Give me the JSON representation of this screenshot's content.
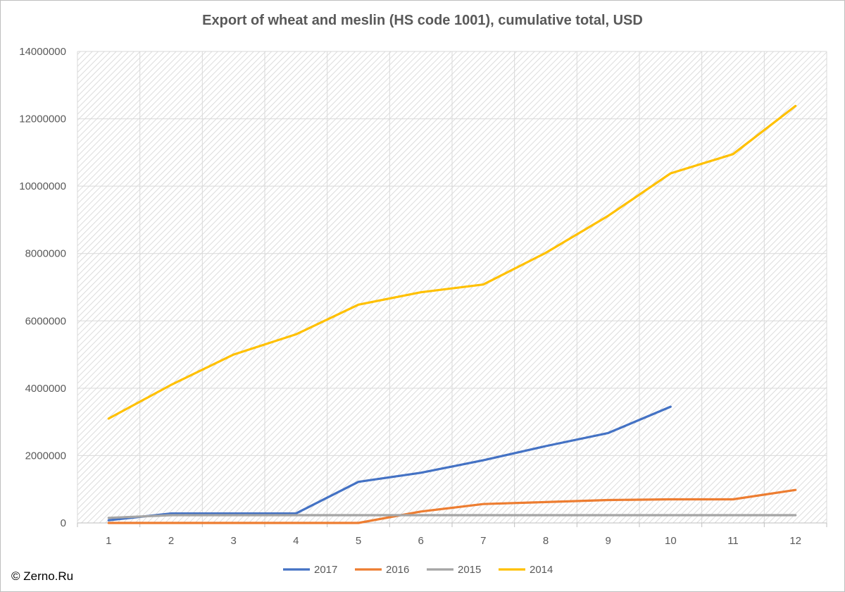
{
  "chart_data": {
    "type": "line",
    "title": "Export of wheat and meslin (HS code 1001), cumulative total, USD",
    "xlabel": "",
    "ylabel": "",
    "categories": [
      "1",
      "2",
      "3",
      "4",
      "5",
      "6",
      "7",
      "8",
      "9",
      "10",
      "11",
      "12"
    ],
    "ylim": [
      0,
      14000000
    ],
    "yticks": [
      0,
      2000000,
      4000000,
      6000000,
      8000000,
      10000000,
      12000000,
      14000000
    ],
    "grid": true,
    "legend_position": "bottom",
    "series": [
      {
        "name": "2017",
        "color": "#4472c4",
        "values": [
          80000,
          280000,
          280000,
          280000,
          1220000,
          1490000,
          1860000,
          2280000,
          2670000,
          3450000,
          null,
          null
        ]
      },
      {
        "name": "2016",
        "color": "#ed7d31",
        "values": [
          0,
          0,
          0,
          0,
          0,
          340000,
          560000,
          620000,
          680000,
          700000,
          700000,
          980000
        ]
      },
      {
        "name": "2015",
        "color": "#a5a5a5",
        "values": [
          150000,
          230000,
          230000,
          230000,
          230000,
          230000,
          230000,
          230000,
          230000,
          230000,
          230000,
          230000
        ]
      },
      {
        "name": "2014",
        "color": "#ffc000",
        "values": [
          3100000,
          4100000,
          5000000,
          5600000,
          6480000,
          6850000,
          7080000,
          8020000,
          9120000,
          10380000,
          10950000,
          12380000
        ]
      }
    ]
  },
  "copyright": "© Zerno.Ru"
}
